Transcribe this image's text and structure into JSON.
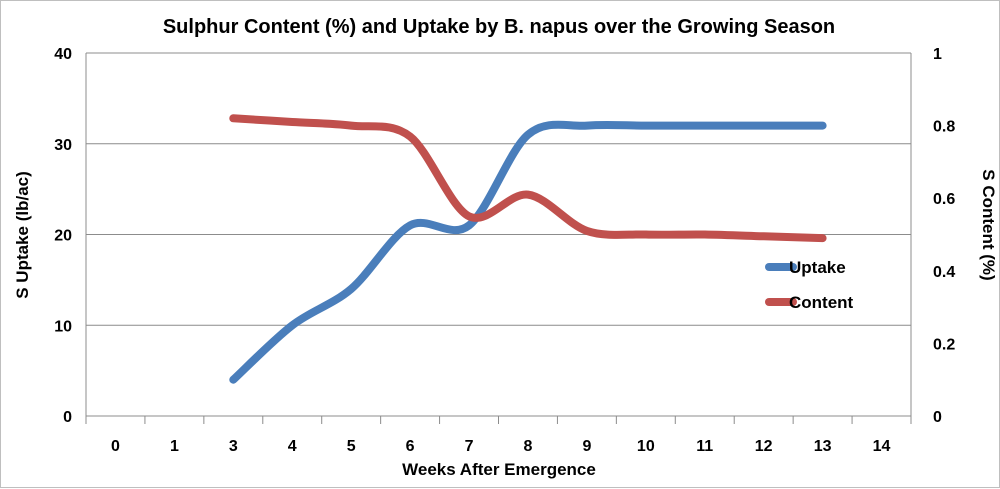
{
  "chart_data": {
    "type": "line",
    "title": "Sulphur Content (%) and Uptake by B. napus over the Growing Season",
    "xlabel": "Weeks After Emergence",
    "ylabel": "S Uptake (lb/ac)",
    "y2label": "S Content (%)",
    "categories": [
      "0",
      "1",
      "3",
      "4",
      "5",
      "6",
      "7",
      "8",
      "9",
      "10",
      "11",
      "12",
      "13",
      "14"
    ],
    "ylim": [
      0,
      40
    ],
    "y2lim": [
      0,
      1
    ],
    "yticks": [
      "0",
      "10",
      "20",
      "30",
      "40"
    ],
    "y2ticks": [
      "0",
      "0.2",
      "0.4",
      "0.6",
      "0.8",
      "1"
    ],
    "grid": true,
    "legend": "right",
    "series": [
      {
        "name": "Uptake",
        "axis": "left",
        "color": "#4a7ebb",
        "points": [
          {
            "x": "3",
            "y": 4
          },
          {
            "x": "4",
            "y": 10
          },
          {
            "x": "5",
            "y": 14
          },
          {
            "x": "6",
            "y": 21
          },
          {
            "x": "7",
            "y": 21
          },
          {
            "x": "8",
            "y": 31
          },
          {
            "x": "9",
            "y": 32
          },
          {
            "x": "10",
            "y": 32
          },
          {
            "x": "11",
            "y": 32
          },
          {
            "x": "12",
            "y": 32
          },
          {
            "x": "13",
            "y": 32
          }
        ]
      },
      {
        "name": "Content",
        "axis": "right",
        "color": "#c0504d",
        "points": [
          {
            "x": "3",
            "y": 0.82
          },
          {
            "x": "4",
            "y": 0.81
          },
          {
            "x": "5",
            "y": 0.8
          },
          {
            "x": "6",
            "y": 0.77
          },
          {
            "x": "7",
            "y": 0.55
          },
          {
            "x": "8",
            "y": 0.61
          },
          {
            "x": "9",
            "y": 0.51
          },
          {
            "x": "10",
            "y": 0.5
          },
          {
            "x": "11",
            "y": 0.5
          },
          {
            "x": "12",
            "y": 0.495
          },
          {
            "x": "13",
            "y": 0.49
          }
        ]
      }
    ]
  }
}
